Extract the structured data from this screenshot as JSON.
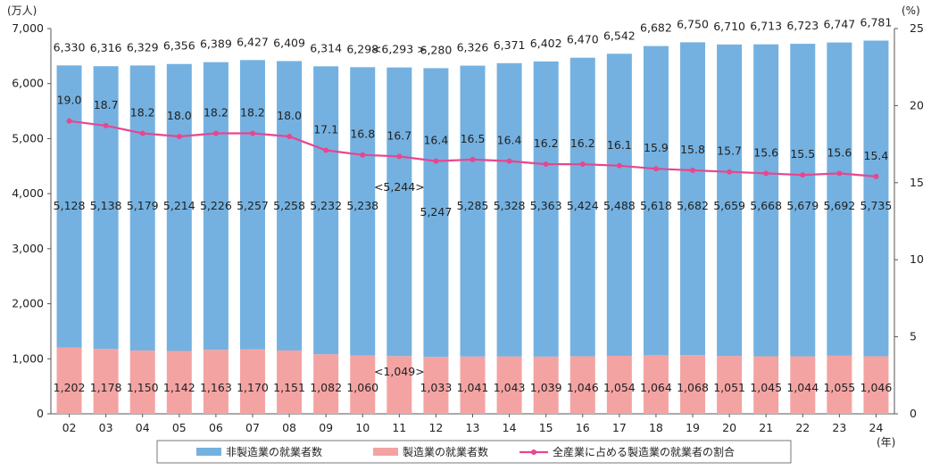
{
  "chart_data": {
    "type": "bar",
    "stacked": true,
    "categories": [
      "02",
      "03",
      "04",
      "05",
      "06",
      "07",
      "08",
      "09",
      "10",
      "11",
      "12",
      "13",
      "14",
      "15",
      "16",
      "17",
      "18",
      "19",
      "20",
      "21",
      "22",
      "23",
      "24"
    ],
    "series": [
      {
        "name": "非製造業の就業者数",
        "color": "#74b1e0",
        "values": [
          5128,
          5138,
          5179,
          5214,
          5226,
          5257,
          5258,
          5232,
          5238,
          5244,
          5247,
          5285,
          5328,
          5363,
          5424,
          5488,
          5618,
          5682,
          5659,
          5668,
          5679,
          5692,
          5735
        ],
        "labels": [
          "5,128",
          "5,138",
          "5,179",
          "5,214",
          "5,226",
          "5,257",
          "5,258",
          "5,232",
          "5,238",
          "<5,244>",
          "5,247",
          "5,285",
          "5,328",
          "5,363",
          "5,424",
          "5,488",
          "5,618",
          "5,682",
          "5,659",
          "5,668",
          "5,679",
          "5,692",
          "5,735"
        ]
      },
      {
        "name": "製造業の就業者数",
        "color": "#f4a3a3",
        "values": [
          1202,
          1178,
          1150,
          1142,
          1163,
          1170,
          1151,
          1082,
          1060,
          1049,
          1033,
          1041,
          1043,
          1039,
          1046,
          1054,
          1064,
          1068,
          1051,
          1045,
          1044,
          1055,
          1046
        ],
        "labels": [
          "1,202",
          "1,178",
          "1,150",
          "1,142",
          "1,163",
          "1,170",
          "1,151",
          "1,082",
          "1,060",
          "<1,049>",
          "1,033",
          "1,041",
          "1,043",
          "1,039",
          "1,046",
          "1,054",
          "1,064",
          "1,068",
          "1,051",
          "1,045",
          "1,044",
          "1,055",
          "1,046"
        ]
      },
      {
        "name": "全産業に占める製造業の就業者の割合",
        "type": "line",
        "axis": "right",
        "color": "#e8468f",
        "values": [
          19.0,
          18.7,
          18.2,
          18.0,
          18.2,
          18.2,
          18.0,
          17.1,
          16.8,
          16.7,
          16.4,
          16.5,
          16.4,
          16.2,
          16.2,
          16.1,
          15.9,
          15.8,
          15.7,
          15.6,
          15.5,
          15.6,
          15.4
        ],
        "labels": [
          "19.0",
          "18.7",
          "18.2",
          "18.0",
          "18.2",
          "18.2",
          "18.0",
          "17.1",
          "16.8",
          "16.7",
          "16.4",
          "16.5",
          "16.4",
          "16.2",
          "16.2",
          "16.1",
          "15.9",
          "15.8",
          "15.7",
          "15.6",
          "15.5",
          "15.6",
          "15.4"
        ]
      }
    ],
    "totals": {
      "values": [
        6330,
        6316,
        6329,
        6356,
        6389,
        6427,
        6409,
        6314,
        6298,
        6293,
        6280,
        6326,
        6371,
        6402,
        6470,
        6542,
        6682,
        6750,
        6710,
        6713,
        6723,
        6747,
        6781
      ],
      "labels": [
        "6,330",
        "6,316",
        "6,329",
        "6,356",
        "6,389",
        "6,427",
        "6,409",
        "6,314",
        "6,298",
        "<6,293 >",
        "6,280",
        "6,326",
        "6,371",
        "6,402",
        "6,470",
        "6,542",
        "6,682",
        "6,750",
        "6,710",
        "6,713",
        "6,723",
        "6,747",
        "6,781"
      ]
    },
    "y_left": {
      "unit": "(万人)",
      "ylim": [
        0,
        7000
      ],
      "ticks": [
        0,
        1000,
        2000,
        3000,
        4000,
        5000,
        6000,
        7000
      ],
      "tick_labels": [
        "0",
        "1,000",
        "2,000",
        "3,000",
        "4,000",
        "5,000",
        "6,000",
        "7,000"
      ]
    },
    "y_right": {
      "unit": "(%)",
      "ylim": [
        0,
        25
      ],
      "ticks": [
        0,
        5,
        10,
        15,
        20,
        25
      ],
      "tick_labels": [
        "0",
        "5",
        "10",
        "15",
        "20",
        "25"
      ]
    },
    "x_unit": "(年)",
    "legend_position": "bottom",
    "grid": false
  }
}
